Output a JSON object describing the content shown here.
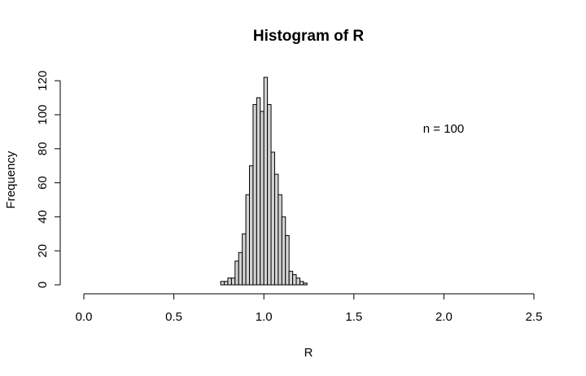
{
  "chart_data": {
    "type": "bar",
    "title": "Histogram of R",
    "xlabel": "R",
    "ylabel": "Frequency",
    "annotation": "n = 100",
    "xlim": [
      0,
      2.5
    ],
    "ylim": [
      0,
      122
    ],
    "x_ticks": [
      0.0,
      0.5,
      1.0,
      1.5,
      2.0,
      2.5
    ],
    "x_tick_labels": [
      "0.0",
      "0.5",
      "1.0",
      "1.5",
      "2.0",
      "2.5"
    ],
    "y_ticks": [
      0,
      20,
      40,
      60,
      80,
      100,
      120
    ],
    "y_tick_labels": [
      "0",
      "20",
      "40",
      "60",
      "80",
      "100",
      "120"
    ],
    "bin_width": 0.02,
    "bin_starts": [
      0.76,
      0.78,
      0.8,
      0.82,
      0.84,
      0.86,
      0.88,
      0.9,
      0.92,
      0.94,
      0.96,
      0.98,
      1.0,
      1.02,
      1.04,
      1.06,
      1.08,
      1.1,
      1.12,
      1.14,
      1.16,
      1.18,
      1.2,
      1.22
    ],
    "values": [
      2,
      2,
      4,
      4,
      14,
      19,
      30,
      53,
      70,
      106,
      110,
      102,
      122,
      106,
      78,
      65,
      53,
      40,
      29,
      8,
      6,
      4,
      2,
      1
    ],
    "grid": false,
    "legend": "none"
  }
}
